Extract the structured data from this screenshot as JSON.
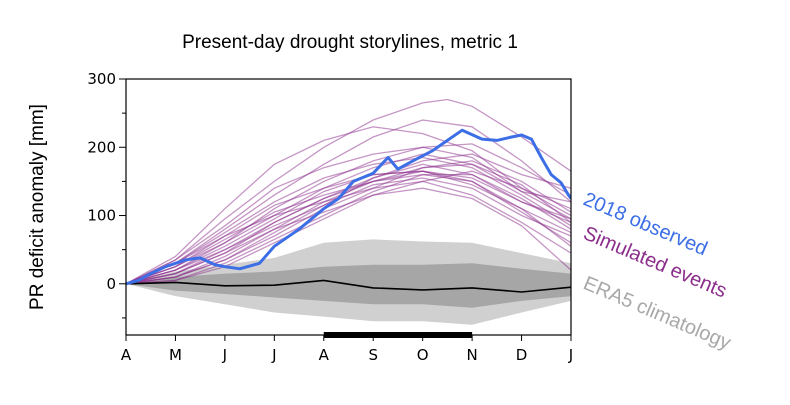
{
  "chart_data": {
    "type": "line",
    "title": "Present-day drought storylines, metric 1",
    "xlabel": "",
    "ylabel": "PR deficit anomaly [mm]",
    "ylim": [
      -75,
      300
    ],
    "y_ticks": [
      0,
      100,
      200,
      300
    ],
    "x_tick_labels": [
      "A",
      "M",
      "J",
      "J",
      "A",
      "S",
      "O",
      "N",
      "D",
      "J"
    ],
    "grid": false,
    "colors": {
      "observed": "#3c6ee6",
      "simulated": "#8b2e8b",
      "climatology": "#a8a8a8",
      "band_outer": "#d0d0d0",
      "band_inner": "#a6a6a6",
      "mean": "#000000"
    },
    "highlight_period": [
      "A",
      "N"
    ],
    "legend": [
      {
        "label": "2018 observed",
        "color": "#3c6ee6"
      },
      {
        "label": "Simulated events",
        "color": "#8b2e8b"
      },
      {
        "label": "ERA5 climatology",
        "color": "#a8a8a8"
      }
    ],
    "legend_position": "right",
    "climatology": {
      "mean": [
        [
          0,
          0
        ],
        [
          1,
          2
        ],
        [
          2,
          -3
        ],
        [
          3,
          -2
        ],
        [
          4,
          5
        ],
        [
          5,
          -6
        ],
        [
          6,
          -9
        ],
        [
          7,
          -6
        ],
        [
          8,
          -12
        ],
        [
          9,
          -5
        ]
      ],
      "band_outer_upper": [
        [
          0,
          0
        ],
        [
          1,
          18
        ],
        [
          2,
          28
        ],
        [
          3,
          38
        ],
        [
          4,
          60
        ],
        [
          5,
          65
        ],
        [
          6,
          62
        ],
        [
          7,
          60
        ],
        [
          8,
          45
        ],
        [
          9,
          30
        ]
      ],
      "band_outer_lower": [
        [
          0,
          0
        ],
        [
          1,
          -18
        ],
        [
          2,
          -30
        ],
        [
          3,
          -42
        ],
        [
          4,
          -48
        ],
        [
          5,
          -55
        ],
        [
          6,
          -55
        ],
        [
          7,
          -60
        ],
        [
          8,
          -42
        ],
        [
          9,
          -25
        ]
      ],
      "band_inner_upper": [
        [
          0,
          0
        ],
        [
          1,
          10
        ],
        [
          2,
          15
        ],
        [
          3,
          18
        ],
        [
          4,
          25
        ],
        [
          5,
          28
        ],
        [
          6,
          28
        ],
        [
          7,
          30
        ],
        [
          8,
          22
        ],
        [
          9,
          15
        ]
      ],
      "band_inner_lower": [
        [
          0,
          0
        ],
        [
          1,
          -10
        ],
        [
          2,
          -15
        ],
        [
          3,
          -20
        ],
        [
          4,
          -25
        ],
        [
          5,
          -30
        ],
        [
          6,
          -30
        ],
        [
          7,
          -35
        ],
        [
          8,
          -25
        ],
        [
          9,
          -18
        ]
      ]
    },
    "observed_2018": [
      [
        0,
        0
      ],
      [
        0.25,
        5
      ],
      [
        0.5,
        15
      ],
      [
        0.8,
        25
      ],
      [
        1.2,
        35
      ],
      [
        1.5,
        38
      ],
      [
        1.8,
        28
      ],
      [
        2.0,
        25
      ],
      [
        2.3,
        22
      ],
      [
        2.7,
        30
      ],
      [
        3.0,
        55
      ],
      [
        3.5,
        80
      ],
      [
        4.0,
        110
      ],
      [
        4.3,
        125
      ],
      [
        4.6,
        150
      ],
      [
        5.0,
        162
      ],
      [
        5.3,
        185
      ],
      [
        5.5,
        168
      ],
      [
        5.8,
        180
      ],
      [
        6.2,
        195
      ],
      [
        6.5,
        210
      ],
      [
        6.8,
        225
      ],
      [
        7.2,
        212
      ],
      [
        7.5,
        210
      ],
      [
        7.8,
        215
      ],
      [
        8.0,
        218
      ],
      [
        8.2,
        212
      ],
      [
        8.4,
        185
      ],
      [
        8.6,
        160
      ],
      [
        8.8,
        148
      ],
      [
        8.95,
        130
      ],
      [
        9.0,
        125
      ]
    ],
    "simulated_events": [
      [
        [
          0,
          0
        ],
        [
          1,
          35
        ],
        [
          2,
          95
        ],
        [
          3,
          150
        ],
        [
          4,
          200
        ],
        [
          5,
          240
        ],
        [
          6,
          265
        ],
        [
          6.5,
          270
        ],
        [
          7,
          260
        ],
        [
          8,
          215
        ],
        [
          9,
          165
        ]
      ],
      [
        [
          0,
          0
        ],
        [
          1,
          30
        ],
        [
          2,
          80
        ],
        [
          3,
          130
        ],
        [
          4,
          175
        ],
        [
          5,
          215
        ],
        [
          6,
          240
        ],
        [
          7,
          230
        ],
        [
          8,
          180
        ],
        [
          9,
          120
        ]
      ],
      [
        [
          0,
          0
        ],
        [
          1,
          20
        ],
        [
          2,
          60
        ],
        [
          3,
          110
        ],
        [
          4,
          150
        ],
        [
          5,
          180
        ],
        [
          6,
          200
        ],
        [
          7,
          205
        ],
        [
          8,
          170
        ],
        [
          9,
          130
        ]
      ],
      [
        [
          0,
          0
        ],
        [
          1,
          15
        ],
        [
          2,
          45
        ],
        [
          3,
          90
        ],
        [
          4,
          125
        ],
        [
          5,
          155
        ],
        [
          6,
          175
        ],
        [
          7,
          160
        ],
        [
          8,
          120
        ],
        [
          9,
          90
        ]
      ],
      [
        [
          0,
          0
        ],
        [
          1,
          25
        ],
        [
          2,
          70
        ],
        [
          3,
          115
        ],
        [
          4,
          140
        ],
        [
          5,
          160
        ],
        [
          6,
          165
        ],
        [
          7,
          145
        ],
        [
          8,
          110
        ],
        [
          9,
          75
        ]
      ],
      [
        [
          0,
          0
        ],
        [
          1,
          10
        ],
        [
          2,
          35
        ],
        [
          3,
          70
        ],
        [
          4,
          110
        ],
        [
          5,
          140
        ],
        [
          6,
          170
        ],
        [
          7,
          180
        ],
        [
          8,
          150
        ],
        [
          9,
          105
        ]
      ],
      [
        [
          0,
          0
        ],
        [
          1,
          40
        ],
        [
          2,
          110
        ],
        [
          3,
          175
        ],
        [
          4,
          210
        ],
        [
          5,
          230
        ],
        [
          6,
          220
        ],
        [
          7,
          195
        ],
        [
          8,
          140
        ],
        [
          9,
          100
        ]
      ],
      [
        [
          0,
          0
        ],
        [
          1,
          5
        ],
        [
          2,
          25
        ],
        [
          3,
          60
        ],
        [
          4,
          95
        ],
        [
          5,
          130
        ],
        [
          6,
          150
        ],
        [
          7,
          165
        ],
        [
          8,
          140
        ],
        [
          9,
          110
        ]
      ],
      [
        [
          0,
          0
        ],
        [
          1,
          30
        ],
        [
          2,
          75
        ],
        [
          3,
          120
        ],
        [
          4,
          155
        ],
        [
          5,
          175
        ],
        [
          6,
          185
        ],
        [
          7,
          170
        ],
        [
          8,
          130
        ],
        [
          9,
          85
        ]
      ],
      [
        [
          0,
          0
        ],
        [
          1,
          20
        ],
        [
          2,
          55
        ],
        [
          3,
          95
        ],
        [
          4,
          135
        ],
        [
          5,
          160
        ],
        [
          6,
          165
        ],
        [
          7,
          155
        ],
        [
          8,
          120
        ],
        [
          9,
          95
        ]
      ],
      [
        [
          0,
          0
        ],
        [
          1,
          15
        ],
        [
          2,
          50
        ],
        [
          3,
          85
        ],
        [
          4,
          115
        ],
        [
          5,
          145
        ],
        [
          6,
          155
        ],
        [
          7,
          140
        ],
        [
          8,
          100
        ],
        [
          9,
          70
        ]
      ],
      [
        [
          0,
          0
        ],
        [
          1,
          25
        ],
        [
          2,
          65
        ],
        [
          3,
          105
        ],
        [
          4,
          130
        ],
        [
          5,
          150
        ],
        [
          6,
          160
        ],
        [
          7,
          150
        ],
        [
          8,
          110
        ],
        [
          9,
          55
        ]
      ],
      [
        [
          0,
          0
        ],
        [
          1,
          10
        ],
        [
          2,
          40
        ],
        [
          3,
          80
        ],
        [
          4,
          120
        ],
        [
          5,
          150
        ],
        [
          6,
          170
        ],
        [
          7,
          175
        ],
        [
          8,
          135
        ],
        [
          9,
          120
        ]
      ],
      [
        [
          0,
          0
        ],
        [
          1,
          35
        ],
        [
          2,
          85
        ],
        [
          3,
          140
        ],
        [
          4,
          170
        ],
        [
          5,
          190
        ],
        [
          6,
          200
        ],
        [
          7,
          185
        ],
        [
          8,
          135
        ],
        [
          9,
          95
        ]
      ],
      [
        [
          0,
          0
        ],
        [
          1,
          5
        ],
        [
          2,
          30
        ],
        [
          3,
          65
        ],
        [
          4,
          100
        ],
        [
          5,
          135
        ],
        [
          6,
          160
        ],
        [
          7,
          160
        ],
        [
          8,
          125
        ],
        [
          9,
          80
        ]
      ],
      [
        [
          0,
          0
        ],
        [
          1,
          20
        ],
        [
          2,
          50
        ],
        [
          3,
          90
        ],
        [
          4,
          125
        ],
        [
          5,
          150
        ],
        [
          6,
          165
        ],
        [
          7,
          150
        ],
        [
          8,
          105
        ],
        [
          9,
          60
        ]
      ],
      [
        [
          0,
          0
        ],
        [
          1,
          30
        ],
        [
          2,
          70
        ],
        [
          3,
          100
        ],
        [
          4,
          120
        ],
        [
          5,
          140
        ],
        [
          6,
          150
        ],
        [
          7,
          130
        ],
        [
          8,
          90
        ],
        [
          9,
          45
        ]
      ],
      [
        [
          0,
          0
        ],
        [
          1,
          15
        ],
        [
          2,
          45
        ],
        [
          3,
          80
        ],
        [
          4,
          105
        ],
        [
          5,
          130
        ],
        [
          6,
          140
        ],
        [
          7,
          125
        ],
        [
          8,
          85
        ],
        [
          9,
          20
        ]
      ],
      [
        [
          0,
          0
        ],
        [
          1,
          10
        ],
        [
          2,
          35
        ],
        [
          3,
          75
        ],
        [
          4,
          115
        ],
        [
          5,
          155
        ],
        [
          6,
          180
        ],
        [
          7,
          190
        ],
        [
          8,
          160
        ],
        [
          9,
          140
        ]
      ],
      [
        [
          0,
          0
        ],
        [
          1,
          25
        ],
        [
          2,
          60
        ],
        [
          3,
          100
        ],
        [
          4,
          140
        ],
        [
          5,
          170
        ],
        [
          6,
          190
        ],
        [
          7,
          175
        ],
        [
          8,
          145
        ],
        [
          9,
          90
        ]
      ]
    ]
  }
}
